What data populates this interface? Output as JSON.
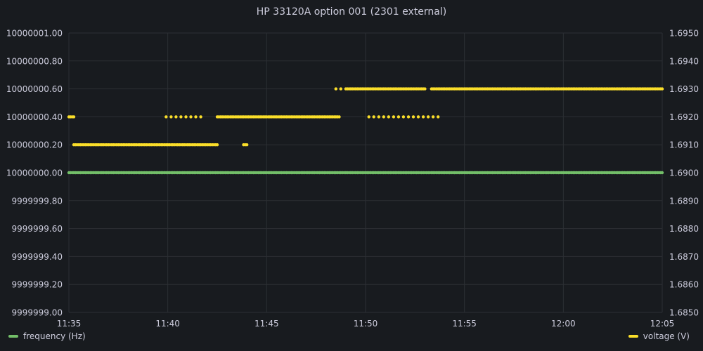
{
  "chart_data": {
    "type": "scatter",
    "title": "HP 33120A option 001 (2301 external)",
    "x_ticks": [
      "11:35",
      "11:40",
      "11:45",
      "11:50",
      "11:55",
      "12:00",
      "12:05"
    ],
    "x_range": [
      "11:35",
      "12:05"
    ],
    "y_left": {
      "ticks": [
        "10000001.00",
        "10000000.80",
        "10000000.60",
        "10000000.40",
        "10000000.20",
        "10000000.00",
        "9999999.80",
        "9999999.60",
        "9999999.40",
        "9999999.20",
        "9999999.00"
      ],
      "ylim": [
        9999999.0,
        10000001.0
      ]
    },
    "y_right": {
      "ticks": [
        "1.6950",
        "1.6940",
        "1.6930",
        "1.6920",
        "1.6910",
        "1.6900",
        "1.6890",
        "1.6880",
        "1.6870",
        "1.6860",
        "1.6850"
      ],
      "ylim": [
        1.685,
        1.695
      ]
    },
    "grid": true,
    "series": [
      {
        "name": "frequency (Hz)",
        "axis": "left",
        "color": "#73bf69",
        "segments": [
          {
            "from": "11:35:00",
            "to": "12:05:00",
            "value": 10000000.0
          }
        ]
      },
      {
        "name": "voltage (V)",
        "axis": "right",
        "color": "#fade2a",
        "segments": [
          {
            "from": "11:35:00",
            "to": "11:35:15",
            "value": 1.692
          },
          {
            "from": "11:35:15",
            "to": "11:42:30",
            "value": 1.691
          },
          {
            "from": "11:39:55",
            "to": "11:41:45",
            "value": 1.692,
            "sparse": true
          },
          {
            "from": "11:42:30",
            "to": "11:48:40",
            "value": 1.692
          },
          {
            "from": "11:43:50",
            "to": "11:44:00",
            "value": 1.691
          },
          {
            "from": "11:48:15",
            "to": "11:49:00",
            "value": 1.693,
            "sparse": true
          },
          {
            "from": "11:49:00",
            "to": "11:53:00",
            "value": 1.693
          },
          {
            "from": "11:50:10",
            "to": "11:53:40",
            "value": 1.692,
            "sparse": true
          },
          {
            "from": "11:53:20",
            "to": "12:05:00",
            "value": 1.693
          }
        ]
      }
    ]
  }
}
